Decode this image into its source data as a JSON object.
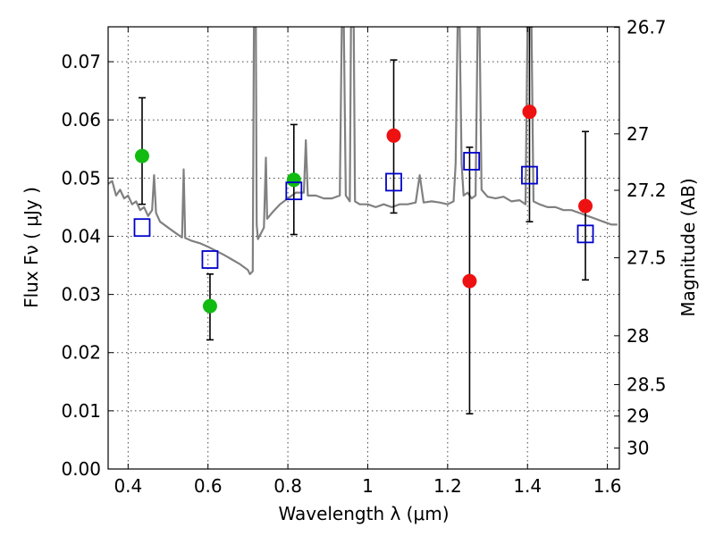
{
  "chart_data": {
    "type": "scatter",
    "xlabel": "Wavelength  λ (μm)",
    "ylabel": "Flux  Fν  ( μJy )",
    "y2label": "Magnitude (AB)",
    "xlim": [
      0.35,
      1.63
    ],
    "ylim": [
      0.0,
      0.076
    ],
    "xticks": [
      0.4,
      0.6,
      0.8,
      1.0,
      1.2,
      1.4,
      1.6
    ],
    "xtick_labels": [
      "0.4",
      "0.6",
      "0.8",
      "1",
      "1.2",
      "1.4",
      "1.6"
    ],
    "yticks": [
      0.0,
      0.01,
      0.02,
      0.03,
      0.04,
      0.05,
      0.06,
      0.07
    ],
    "ytick_labels": [
      "0.00",
      "0.01",
      "0.02",
      "0.03",
      "0.04",
      "0.05",
      "0.06",
      "0.07"
    ],
    "right_ticks": [
      {
        "label": "26.7",
        "flux": 0.0759
      },
      {
        "label": "27",
        "flux": 0.0576
      },
      {
        "label": "27.2",
        "flux": 0.0479
      },
      {
        "label": "27.5",
        "flux": 0.0363
      },
      {
        "label": "28",
        "flux": 0.0229
      },
      {
        "label": "28.5",
        "flux": 0.0145
      },
      {
        "label": "29",
        "flux": 0.0091
      },
      {
        "label": "30",
        "flux": 0.0036
      }
    ],
    "grid": true,
    "colors": {
      "green": "#11bb11",
      "red": "#ee1111",
      "model_square": "#0000cc",
      "spectrum": "#808080",
      "errorbar": "#000000"
    },
    "series": [
      {
        "name": "green photometry",
        "marker": "circle",
        "color": "#11bb11",
        "points": [
          {
            "x": 0.435,
            "y": 0.0538,
            "ylo": 0.0455,
            "yhi": 0.0638
          },
          {
            "x": 0.605,
            "y": 0.028,
            "ylo": 0.0222,
            "yhi": 0.0335
          },
          {
            "x": 0.815,
            "y": 0.0497,
            "ylo": 0.0403,
            "yhi": 0.0592
          }
        ]
      },
      {
        "name": "red photometry",
        "marker": "circle",
        "color": "#ee1111",
        "points": [
          {
            "x": 1.065,
            "y": 0.0573,
            "ylo": 0.044,
            "yhi": 0.0703
          },
          {
            "x": 1.255,
            "y": 0.0323,
            "ylo": 0.0095,
            "yhi": 0.0553
          },
          {
            "x": 1.405,
            "y": 0.0614,
            "ylo": 0.0425,
            "yhi": 0.076
          },
          {
            "x": 1.545,
            "y": 0.0452,
            "ylo": 0.0325,
            "yhi": 0.058
          }
        ]
      },
      {
        "name": "model photometry",
        "marker": "square",
        "color": "#0000cc",
        "points": [
          {
            "x": 0.435,
            "y": 0.0415
          },
          {
            "x": 0.605,
            "y": 0.036
          },
          {
            "x": 0.815,
            "y": 0.0478
          },
          {
            "x": 1.065,
            "y": 0.0493
          },
          {
            "x": 1.26,
            "y": 0.0529
          },
          {
            "x": 1.405,
            "y": 0.0505
          },
          {
            "x": 1.545,
            "y": 0.0404
          }
        ]
      }
    ],
    "spectrum": {
      "name": "model SED",
      "color": "#808080",
      "points": [
        [
          0.35,
          0.049
        ],
        [
          0.36,
          0.0495
        ],
        [
          0.37,
          0.047
        ],
        [
          0.38,
          0.048
        ],
        [
          0.39,
          0.0465
        ],
        [
          0.4,
          0.047
        ],
        [
          0.41,
          0.0455
        ],
        [
          0.42,
          0.046
        ],
        [
          0.43,
          0.0445
        ],
        [
          0.44,
          0.045
        ],
        [
          0.45,
          0.0435
        ],
        [
          0.46,
          0.0445
        ],
        [
          0.465,
          0.0505
        ],
        [
          0.47,
          0.044
        ],
        [
          0.48,
          0.0425
        ],
        [
          0.5,
          0.0415
        ],
        [
          0.52,
          0.0405
        ],
        [
          0.535,
          0.0398
        ],
        [
          0.539,
          0.0515
        ],
        [
          0.543,
          0.0397
        ],
        [
          0.56,
          0.0392
        ],
        [
          0.58,
          0.0388
        ],
        [
          0.6,
          0.0382
        ],
        [
          0.62,
          0.0375
        ],
        [
          0.64,
          0.0368
        ],
        [
          0.66,
          0.036
        ],
        [
          0.68,
          0.0352
        ],
        [
          0.7,
          0.0342
        ],
        [
          0.705,
          0.0335
        ],
        [
          0.712,
          0.034
        ],
        [
          0.715,
          0.076
        ],
        [
          0.72,
          0.076
        ],
        [
          0.722,
          0.042
        ],
        [
          0.725,
          0.0395
        ],
        [
          0.74,
          0.0415
        ],
        [
          0.745,
          0.0535
        ],
        [
          0.748,
          0.043
        ],
        [
          0.76,
          0.044
        ],
        [
          0.78,
          0.0455
        ],
        [
          0.8,
          0.0465
        ],
        [
          0.82,
          0.0475
        ],
        [
          0.84,
          0.0475
        ],
        [
          0.845,
          0.0565
        ],
        [
          0.85,
          0.047
        ],
        [
          0.87,
          0.047
        ],
        [
          0.89,
          0.0465
        ],
        [
          0.91,
          0.0465
        ],
        [
          0.93,
          0.047
        ],
        [
          0.935,
          0.076
        ],
        [
          0.94,
          0.076
        ],
        [
          0.945,
          0.047
        ],
        [
          0.955,
          0.046
        ],
        [
          0.958,
          0.076
        ],
        [
          0.962,
          0.076
        ],
        [
          0.965,
          0.076
        ],
        [
          0.968,
          0.046
        ],
        [
          0.98,
          0.0455
        ],
        [
          1.0,
          0.0455
        ],
        [
          1.02,
          0.045
        ],
        [
          1.04,
          0.0455
        ],
        [
          1.06,
          0.045
        ],
        [
          1.08,
          0.0455
        ],
        [
          1.1,
          0.0455
        ],
        [
          1.12,
          0.0458
        ],
        [
          1.13,
          0.0505
        ],
        [
          1.14,
          0.0458
        ],
        [
          1.16,
          0.046
        ],
        [
          1.18,
          0.0458
        ],
        [
          1.2,
          0.0455
        ],
        [
          1.215,
          0.046
        ],
        [
          1.22,
          0.0525
        ],
        [
          1.225,
          0.076
        ],
        [
          1.23,
          0.076
        ],
        [
          1.235,
          0.0525
        ],
        [
          1.24,
          0.047
        ],
        [
          1.25,
          0.0475
        ],
        [
          1.26,
          0.0465
        ],
        [
          1.27,
          0.047
        ],
        [
          1.275,
          0.076
        ],
        [
          1.28,
          0.076
        ],
        [
          1.285,
          0.048
        ],
        [
          1.3,
          0.0468
        ],
        [
          1.32,
          0.0465
        ],
        [
          1.34,
          0.0468
        ],
        [
          1.36,
          0.046
        ],
        [
          1.38,
          0.0462
        ],
        [
          1.395,
          0.0455
        ],
        [
          1.4,
          0.076
        ],
        [
          1.41,
          0.076
        ],
        [
          1.415,
          0.046
        ],
        [
          1.43,
          0.0455
        ],
        [
          1.45,
          0.045
        ],
        [
          1.47,
          0.045
        ],
        [
          1.49,
          0.0445
        ],
        [
          1.51,
          0.0445
        ],
        [
          1.53,
          0.044
        ],
        [
          1.55,
          0.0435
        ],
        [
          1.57,
          0.043
        ],
        [
          1.59,
          0.0425
        ],
        [
          1.61,
          0.042
        ],
        [
          1.625,
          0.042
        ]
      ]
    }
  }
}
